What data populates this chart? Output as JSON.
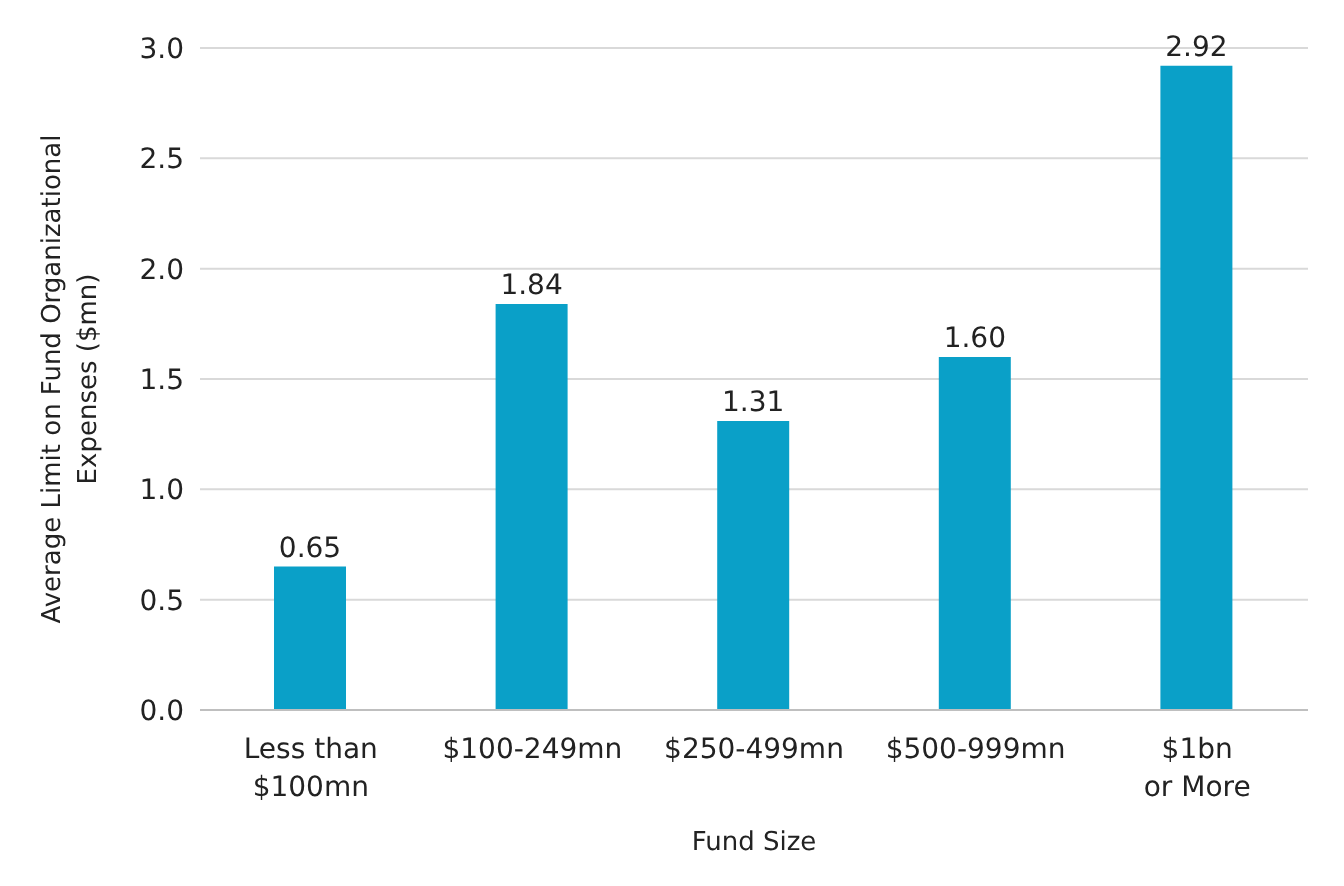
{
  "chart_data": {
    "type": "bar",
    "xlabel": "Fund Size",
    "ylabel": "Average Limit on Fund Organizational\nExpenses ($mn)",
    "categories": [
      "Less than\n$100mn",
      "$100-249mn",
      "$250-499mn",
      "$500-999mn",
      "$1bn\nor More"
    ],
    "values": [
      0.65,
      1.84,
      1.31,
      1.6,
      2.92
    ],
    "color": "#0aa0c8",
    "value_labels": [
      "0.65",
      "1.84",
      "1.31",
      "1.60",
      "2.92"
    ],
    "ylim": [
      0,
      3
    ],
    "yticks": [
      {
        "value": 0,
        "label": "0.0"
      },
      {
        "value": 0.5,
        "label": "0.5"
      },
      {
        "value": 1,
        "label": "1.0"
      },
      {
        "value": 1.5,
        "label": "1.5"
      },
      {
        "value": 2,
        "label": "2.0"
      },
      {
        "value": 2.5,
        "label": "2.5"
      },
      {
        "value": 3,
        "label": "3.0"
      }
    ],
    "grid": "y"
  }
}
